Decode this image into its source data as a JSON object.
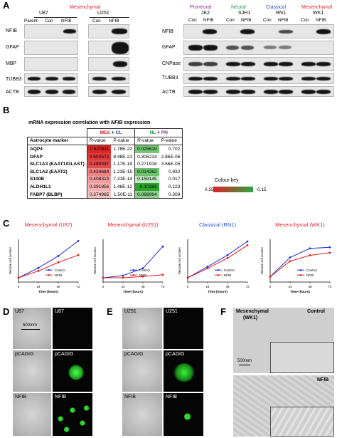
{
  "panel_a": {
    "letter": "A",
    "left": {
      "subtype": "Mesenchymal",
      "cell_lines": [
        "U87",
        "U251"
      ],
      "lanes": [
        "Parent",
        "Con",
        "NFIB",
        "Con",
        "NFIB"
      ],
      "rows": [
        "NFIB",
        "GFAP",
        "MBP",
        "TUBB3",
        "ACTB"
      ]
    },
    "right": {
      "subtypes": [
        "Proneural",
        "Neural",
        "Classical",
        "Mesenchymal"
      ],
      "cell_lines": [
        "JK2",
        "SJH1",
        "RN1",
        "WK1"
      ],
      "lanes": [
        "Con",
        "NFIB",
        "Con",
        "NFIB",
        "Con",
        "NFIB",
        "Con",
        "NFIB"
      ],
      "rows": [
        "NFIB",
        "GFAP",
        "CNPase",
        "TUBB3",
        "ACTB"
      ]
    },
    "colors": {
      "proneural": "#9b2b8f",
      "neural": "#1e9a3c",
      "classical": "#1f4fd1",
      "mesenchymal": "#e0202a"
    }
  },
  "panel_b": {
    "letter": "B",
    "title_prefix": "mRNA expression correlation with ",
    "title_gene": "NFIB",
    "title_suffix": " expression",
    "group1_a": "MES",
    "group1_plus": "+",
    "group1_b": "CL",
    "group2_a": "NL",
    "group2_plus": "+",
    "group2_b": "PN",
    "header_marker": "Astrocyte marker",
    "header_r": "R-value",
    "header_p": "P-value",
    "rows": [
      {
        "marker": "AQP4",
        "r1": "0.520911",
        "p1": "1.78E-22",
        "r2": "0.025619",
        "p2": "0.702"
      },
      {
        "marker": "GFAP",
        "r1": "0.502572",
        "p1": "8.48E-21",
        "r2": "0.306214",
        "p2": "2.86E-06"
      },
      {
        "marker": "SLC1A3 (EAAT1/GLAST)",
        "r1": "0.489397",
        "p1": "1.17E-19",
        "r2": "0.271918",
        "p2": "3.56E-05"
      },
      {
        "marker": "SLC1A2 (EAAT2)",
        "r1": "0.434684",
        "p1": "1.23E-15",
        "r2": "0.014262",
        "p2": "0.832"
      },
      {
        "marker": "S100B",
        "r1": "0.408313",
        "p1": "7.31E-14",
        "r2": "0.159145",
        "p2": "0.017"
      },
      {
        "marker": "ALDH1L1",
        "r1": "0.391856",
        "p1": "1.46E-12",
        "r2": "-0.10283",
        "p2": "0.123"
      },
      {
        "marker": "FABP7 (BLBP)",
        "r1": "0.374965",
        "p1": "1.50E-11",
        "r2": "0.068064",
        "p2": "0.309"
      }
    ],
    "colour_key": {
      "label": "Colour key",
      "max": "0.55",
      "min": "-0.15"
    }
  },
  "panel_c": {
    "letter": "C",
    "ylabel": "Relative cell number",
    "xlabel": "Time (hours)",
    "legend": [
      "Control",
      "NFIB"
    ],
    "series_colors": {
      "Control": "#1a2fd6",
      "NFIB": "#e31a1c"
    }
  },
  "chart_data": [
    {
      "type": "line",
      "title_subtype": "Mesenchymal",
      "title_line": "(U87)",
      "title_color": "#e0202a",
      "x": [
        0,
        24,
        48,
        72
      ],
      "ylim": [
        0,
        10
      ],
      "xlabel": "Time (hours)",
      "ylabel": "Relative cell number",
      "series": [
        {
          "name": "Control",
          "values": [
            1,
            3.3,
            6.1,
            9.6
          ]
        },
        {
          "name": "NFIB",
          "values": [
            1,
            2.6,
            4.6,
            6.3
          ]
        }
      ]
    },
    {
      "type": "line",
      "title_subtype": "Mesenchymal",
      "title_line": "(U251)",
      "title_color": "#e0202a",
      "x": [
        0,
        24,
        48,
        72
      ],
      "ylim": [
        0,
        10
      ],
      "xlabel": "Time (hours)",
      "ylabel": "Relative cell number",
      "series": [
        {
          "name": "Control",
          "values": [
            1,
            1.5,
            3.2,
            8.3
          ]
        },
        {
          "name": "NFIB",
          "values": [
            1,
            1.0,
            1.3,
            1.7
          ]
        }
      ]
    },
    {
      "type": "line",
      "title_subtype": "Classical",
      "title_line": "(RN1)",
      "title_color": "#1f4fd1",
      "x": [
        0,
        24,
        48,
        72
      ],
      "ylim": [
        0,
        10
      ],
      "xlabel": "Time (hours)",
      "ylabel": "Relative cell number",
      "series": [
        {
          "name": "Control",
          "values": [
            1,
            3.6,
            6.3,
            9.5
          ]
        },
        {
          "name": "NFIB",
          "values": [
            1,
            3.2,
            5.6,
            8.6
          ]
        }
      ]
    },
    {
      "type": "line",
      "title_subtype": "Mesenchymal",
      "title_line": "(WK1)",
      "title_color": "#e0202a",
      "x": [
        0,
        24,
        48,
        72
      ],
      "ylim": [
        0,
        8
      ],
      "xlabel": "Time (hours)",
      "ylabel": "Relative cell number",
      "series": [
        {
          "name": "Control",
          "values": [
            1,
            4.6,
            6.3,
            6.5
          ]
        },
        {
          "name": "NFIB",
          "values": [
            1,
            3.9,
            5.0,
            5.5
          ]
        }
      ]
    }
  ],
  "panel_d": {
    "letter": "D",
    "line": "U87",
    "rows": [
      "U87",
      "pCAGIG",
      "NFIB"
    ],
    "scale": "500mm"
  },
  "panel_e": {
    "letter": "E",
    "line": "U251",
    "rows": [
      "U251",
      "pCAGIG",
      "NFIB"
    ]
  },
  "panel_f": {
    "letter": "F",
    "subtype": "Mesenchymal",
    "cell_line": "(WK1)",
    "control": "Control",
    "nfib": "NFIB",
    "scale": "500mm"
  }
}
